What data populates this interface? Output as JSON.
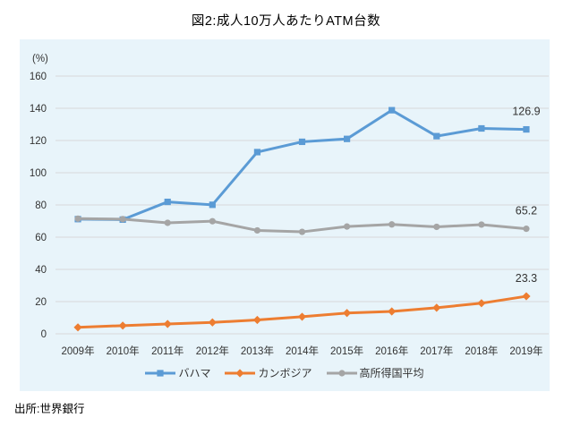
{
  "title": "図2:成人10万人あたりATM台数",
  "source": "出所:世界銀行",
  "chart_data": {
    "type": "line",
    "title": "図2:成人10万人あたりATM台数",
    "unit_label": "(%)",
    "categories": [
      "2009年",
      "2010年",
      "2011年",
      "2012年",
      "2013年",
      "2014年",
      "2015年",
      "2016年",
      "2017年",
      "2018年",
      "2019年"
    ],
    "series": [
      {
        "name": "バハマ",
        "color": "#5B9BD5",
        "marker": "square",
        "values": [
          71.2,
          70.9,
          81.9,
          80.1,
          112.8,
          119.2,
          121.0,
          138.8,
          122.7,
          127.5,
          126.9
        ],
        "end_label": "126.9"
      },
      {
        "name": "カンボジア",
        "color": "#ED7D31",
        "marker": "diamond",
        "values": [
          4.0,
          5.1,
          6.1,
          7.1,
          8.6,
          10.6,
          12.9,
          13.9,
          16.2,
          19.0,
          23.3
        ],
        "end_label": "23.3"
      },
      {
        "name": "高所得国平均",
        "color": "#A5A5A5",
        "marker": "circle",
        "values": [
          71.5,
          71.2,
          68.9,
          69.9,
          64.2,
          63.3,
          66.6,
          67.9,
          66.4,
          67.8,
          65.2
        ],
        "end_label": "65.2"
      }
    ],
    "ylim": [
      0,
      160
    ],
    "ytick_step": 20,
    "grid": true,
    "grid_color": "#D9D9D9",
    "plot_bg": "#E8F4FA",
    "label_color": "#333333",
    "legend_position": "bottom"
  }
}
